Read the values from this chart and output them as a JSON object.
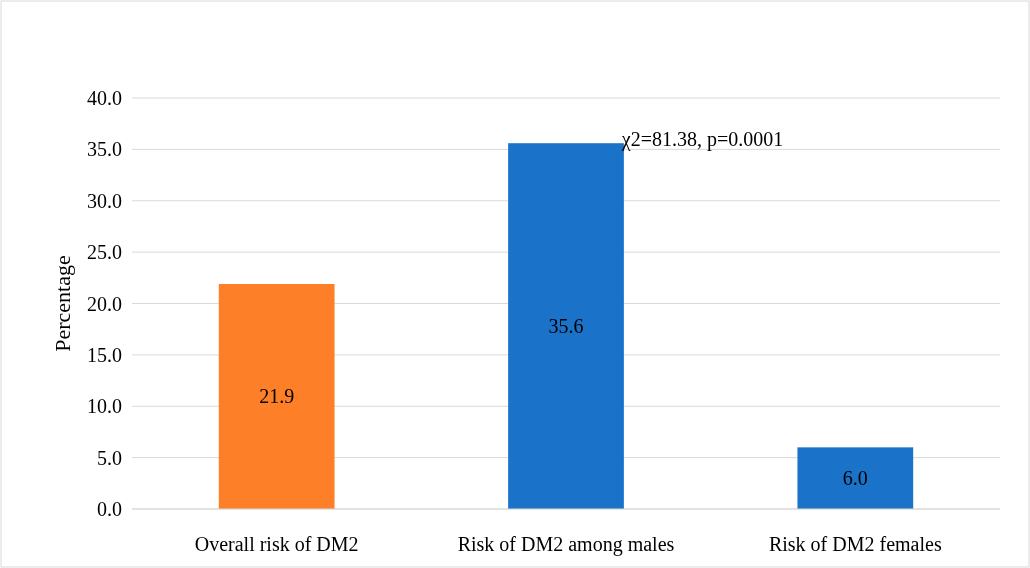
{
  "chart_data": {
    "type": "bar",
    "ylabel": "Percentage",
    "categories": [
      "Overall risk of DM2",
      "Risk of DM2 among males",
      "Risk of DM2 females"
    ],
    "values": [
      21.9,
      35.6,
      6.0
    ],
    "colors": [
      "#fd7f28",
      "#1a72c9",
      "#1a72c9"
    ],
    "value_labels": [
      "21.9",
      "35.6",
      "6.0"
    ],
    "ylim": [
      0,
      40
    ],
    "yticks": [
      {
        "value": 0,
        "label": "0.0"
      },
      {
        "value": 5,
        "label": "5.0"
      },
      {
        "value": 10,
        "label": "10.0"
      },
      {
        "value": 15,
        "label": "15.0"
      },
      {
        "value": 20,
        "label": "20.0"
      },
      {
        "value": 25,
        "label": "25.0"
      },
      {
        "value": 30,
        "label": "30.0"
      },
      {
        "value": 35,
        "label": "35.0"
      },
      {
        "value": 40,
        "label": "40.0"
      }
    ],
    "grid": "y",
    "annotations": [
      {
        "text": "χ2=81.38, p=0.0001",
        "x": "Risk of DM2 among males",
        "y": 35.6
      }
    ]
  }
}
